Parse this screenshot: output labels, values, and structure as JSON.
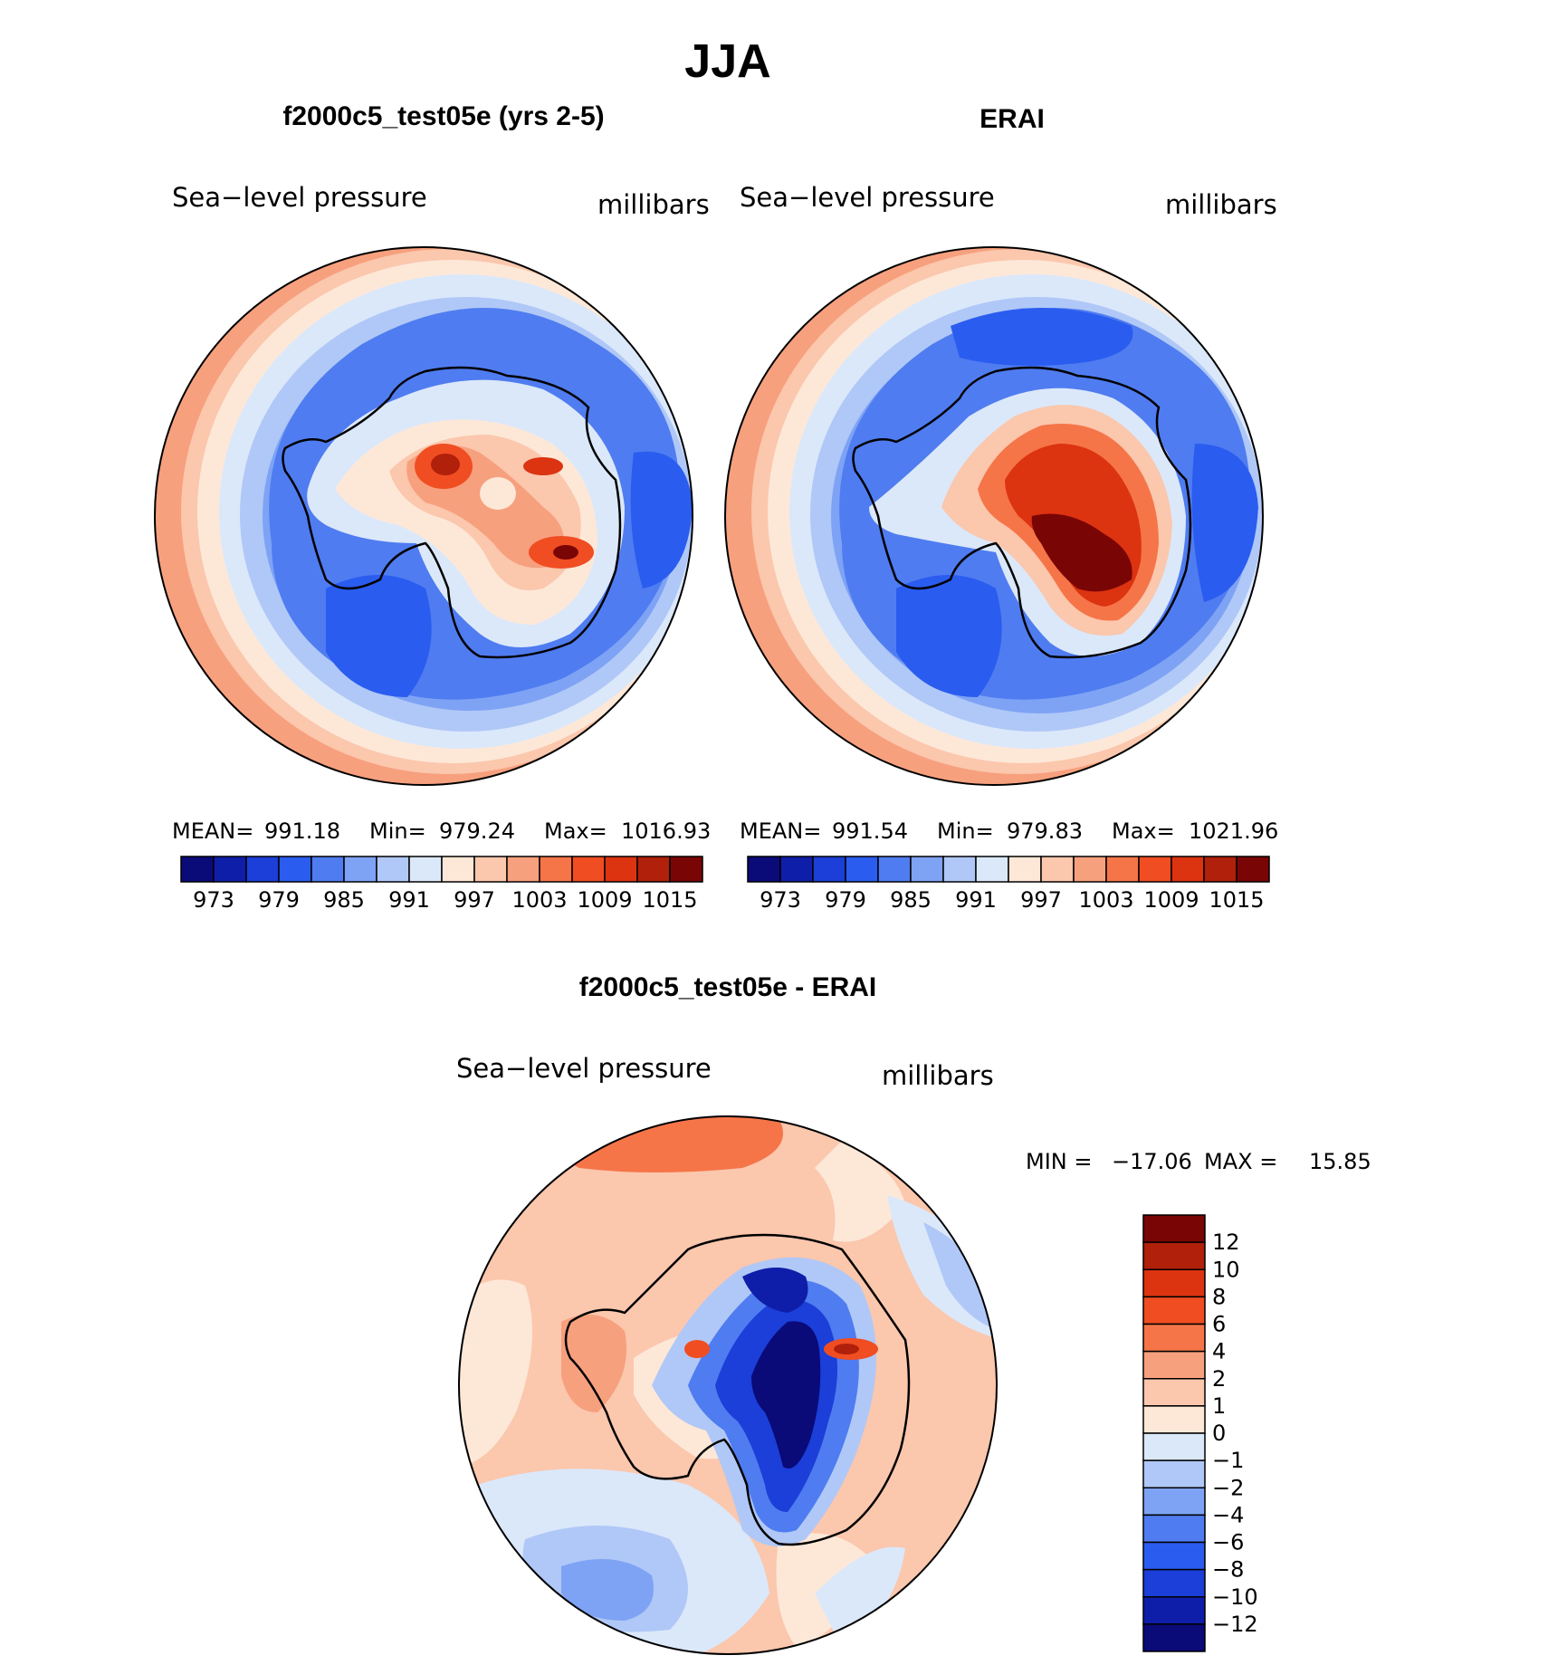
{
  "figure": {
    "title": "JJA"
  },
  "chart_data": [
    {
      "type": "heatmap",
      "projection": "south-polar-stereographic",
      "title": "f2000c5_test05e (yrs 2-5)",
      "variable": "Sea−level pressure",
      "units": "millibars",
      "stats_text": {
        "mean_label": "MEAN=",
        "mean": "991.18",
        "min_label": "Min=",
        "min": "979.24",
        "max_label": "Max=",
        "max": "1016.93"
      },
      "colorbar": {
        "orientation": "horizontal",
        "levels": [
          970,
          973,
          976,
          979,
          982,
          985,
          988,
          991,
          994,
          997,
          1000,
          1003,
          1006,
          1009,
          1012,
          1015,
          1018
        ],
        "tick_labels": [
          "973",
          "979",
          "985",
          "991",
          "997",
          "1003",
          "1009",
          "1015"
        ],
        "colors": [
          "#0a0a78",
          "#0e1ea8",
          "#1b3fd8",
          "#2a5cf0",
          "#4f7cf0",
          "#7ea3f5",
          "#b0c8f7",
          "#dbe8fa",
          "#fde8d8",
          "#fbc7ad",
          "#f7a07e",
          "#f57549",
          "#f04d22",
          "#dc3310",
          "#b0200a",
          "#7a0505"
        ]
      }
    },
    {
      "type": "heatmap",
      "projection": "south-polar-stereographic",
      "title": "ERAI",
      "variable": "Sea−level pressure",
      "units": "millibars",
      "stats_text": {
        "mean_label": "MEAN=",
        "mean": "991.54",
        "min_label": "Min=",
        "min": "979.83",
        "max_label": "Max=",
        "max": "1021.96"
      },
      "colorbar": {
        "orientation": "horizontal",
        "levels": [
          970,
          973,
          976,
          979,
          982,
          985,
          988,
          991,
          994,
          997,
          1000,
          1003,
          1006,
          1009,
          1012,
          1015,
          1018
        ],
        "tick_labels": [
          "973",
          "979",
          "985",
          "991",
          "997",
          "1003",
          "1009",
          "1015"
        ],
        "colors": [
          "#0a0a78",
          "#0e1ea8",
          "#1b3fd8",
          "#2a5cf0",
          "#4f7cf0",
          "#7ea3f5",
          "#b0c8f7",
          "#dbe8fa",
          "#fde8d8",
          "#fbc7ad",
          "#f7a07e",
          "#f57549",
          "#f04d22",
          "#dc3310",
          "#b0200a",
          "#7a0505"
        ]
      }
    },
    {
      "type": "heatmap",
      "projection": "south-polar-stereographic",
      "title": "f2000c5_test05e - ERAI",
      "variable": "Sea−level pressure",
      "units": "millibars",
      "stats_text": {
        "min_label": "MIN =",
        "min": "−17.06",
        "max_label": "MAX =",
        "max": "15.85"
      },
      "colorbar": {
        "orientation": "vertical",
        "tick_labels_top_to_bottom": [
          "12",
          "10",
          "8",
          "6",
          "4",
          "2",
          "1",
          "0",
          "−1",
          "−2",
          "−4",
          "−6",
          "−8",
          "−10",
          "−12"
        ],
        "colors_top_to_bottom": [
          "#7a0505",
          "#b0200a",
          "#dc3310",
          "#f04d22",
          "#f57549",
          "#f7a07e",
          "#fbc7ad",
          "#fde8d8",
          "#dbe8fa",
          "#b0c8f7",
          "#7ea3f5",
          "#4f7cf0",
          "#2a5cf0",
          "#1b3fd8",
          "#0e1ea8",
          "#0a0a78"
        ]
      }
    }
  ]
}
